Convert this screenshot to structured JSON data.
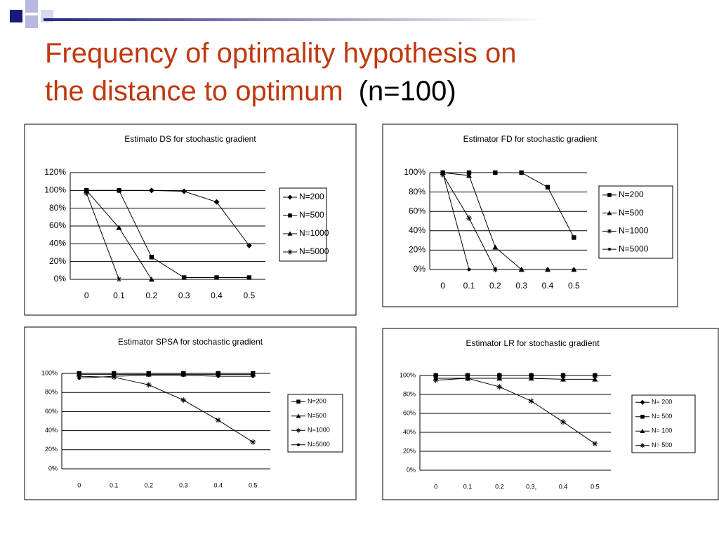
{
  "slide": {
    "title": "Frequency of optimality hypothesis on the distance to optimum",
    "title_suffix": "(n=100)"
  },
  "chart_data": [
    {
      "type": "line",
      "title": "Estimato DS for stochastic gradient",
      "categories": [
        "0",
        "0.1",
        "0.2",
        "0.3",
        "0.4",
        "0.5"
      ],
      "ylim": [
        0,
        120
      ],
      "yticks": [
        {
          "value": 0,
          "label": "0%"
        },
        {
          "value": 20,
          "label": "20%"
        },
        {
          "value": 40,
          "label": "40%"
        },
        {
          "value": 60,
          "label": "60%"
        },
        {
          "value": 80,
          "label": "80%"
        },
        {
          "value": 100,
          "label": "100%"
        },
        {
          "value": 120,
          "label": "120%"
        }
      ],
      "grid": true,
      "legend": "right",
      "series": [
        {
          "name": "N=200",
          "color": "#000000",
          "marker": "diamond",
          "values": [
            100,
            100,
            100,
            99,
            87,
            38
          ]
        },
        {
          "name": "N=500",
          "color": "#000000",
          "marker": "square",
          "values": [
            100,
            100,
            25,
            2,
            2,
            2
          ]
        },
        {
          "name": "N=1000",
          "color": "#000000",
          "marker": "triangle",
          "values": [
            100,
            58,
            0,
            null,
            null,
            null
          ]
        },
        {
          "name": "N=5000",
          "color": "#000000",
          "marker": "star",
          "values": [
            97,
            0,
            null,
            null,
            null,
            null
          ]
        }
      ]
    },
    {
      "type": "line",
      "title": "Estimator FD for stochastic gradient",
      "categories": [
        "0",
        "0.1",
        "0.2",
        "0.3",
        "0.4",
        "0.5"
      ],
      "ylim": [
        0,
        100
      ],
      "yticks": [
        {
          "value": 0,
          "label": "0%"
        },
        {
          "value": 20,
          "label": "20%"
        },
        {
          "value": 40,
          "label": "40%"
        },
        {
          "value": 60,
          "label": "60%"
        },
        {
          "value": 80,
          "label": "80%"
        },
        {
          "value": 100,
          "label": "100%"
        }
      ],
      "grid": true,
      "legend": "right",
      "series": [
        {
          "name": "N=200",
          "color": "#000000",
          "marker": "square",
          "values": [
            100,
            100,
            100,
            100,
            85,
            33
          ]
        },
        {
          "name": "N=500",
          "color": "#000000",
          "marker": "triangle",
          "values": [
            100,
            97,
            23,
            0,
            0,
            0
          ]
        },
        {
          "name": "N=1000",
          "color": "#000000",
          "marker": "star",
          "values": [
            98,
            53,
            0,
            null,
            null,
            null
          ]
        },
        {
          "name": "N=5000",
          "color": "#000000",
          "marker": "dot",
          "values": [
            100,
            0,
            0,
            0,
            0,
            0
          ]
        }
      ]
    },
    {
      "type": "line",
      "title": "Estimator SPSA for stochastic gradient",
      "categories": [
        "0",
        "0.1",
        "0.2",
        "0.3",
        "0.4",
        "0.5"
      ],
      "ylim": [
        0,
        100
      ],
      "yticks": [
        {
          "value": 0,
          "label": "0%"
        },
        {
          "value": 20,
          "label": "20%"
        },
        {
          "value": 40,
          "label": "40%"
        },
        {
          "value": 60,
          "label": "60%"
        },
        {
          "value": 80,
          "label": "80%"
        },
        {
          "value": 100,
          "label": "100%"
        }
      ],
      "grid": true,
      "legend": "right",
      "series": [
        {
          "name": "N=200",
          "color": "#000000",
          "marker": "square",
          "values": [
            100,
            100,
            100,
            100,
            100,
            100
          ]
        },
        {
          "name": "N=500",
          "color": "#000000",
          "marker": "triangle",
          "values": [
            99,
            99,
            99,
            99,
            99,
            99
          ]
        },
        {
          "name": "N=1000",
          "color": "#000000",
          "marker": "star",
          "values": [
            97,
            96,
            88,
            72,
            51,
            28
          ]
        },
        {
          "name": "N=5000",
          "color": "#000000",
          "marker": "dot",
          "values": [
            95,
            97,
            98,
            98,
            97,
            97
          ]
        }
      ]
    },
    {
      "type": "line",
      "title": "Estimator LR for stochastic gradient",
      "categories": [
        "0",
        "0.1",
        "0.2",
        "0.3,",
        "0.4",
        "0.5"
      ],
      "ylim": [
        0,
        100
      ],
      "yticks": [
        {
          "value": 0,
          "label": "0%"
        },
        {
          "value": 20,
          "label": "20%"
        },
        {
          "value": 40,
          "label": "40%"
        },
        {
          "value": 60,
          "label": "60%"
        },
        {
          "value": 80,
          "label": "80%"
        },
        {
          "value": 100,
          "label": "100%"
        }
      ],
      "grid": true,
      "legend": "right",
      "series": [
        {
          "name": "N= 200",
          "color": "#000000",
          "marker": "diamond",
          "values": [
            100,
            100,
            100,
            100,
            100,
            100
          ]
        },
        {
          "name": "N= 500",
          "color": "#000000",
          "marker": "square",
          "values": [
            100,
            100,
            100,
            100,
            100,
            100
          ]
        },
        {
          "name": "N= 100",
          "color": "#000000",
          "marker": "triangle",
          "values": [
            97,
            97,
            97,
            97,
            96,
            96
          ]
        },
        {
          "name": "N= 500",
          "color": "#000000",
          "marker": "star",
          "values": [
            95,
            97,
            88,
            73,
            51,
            28
          ]
        }
      ]
    }
  ]
}
